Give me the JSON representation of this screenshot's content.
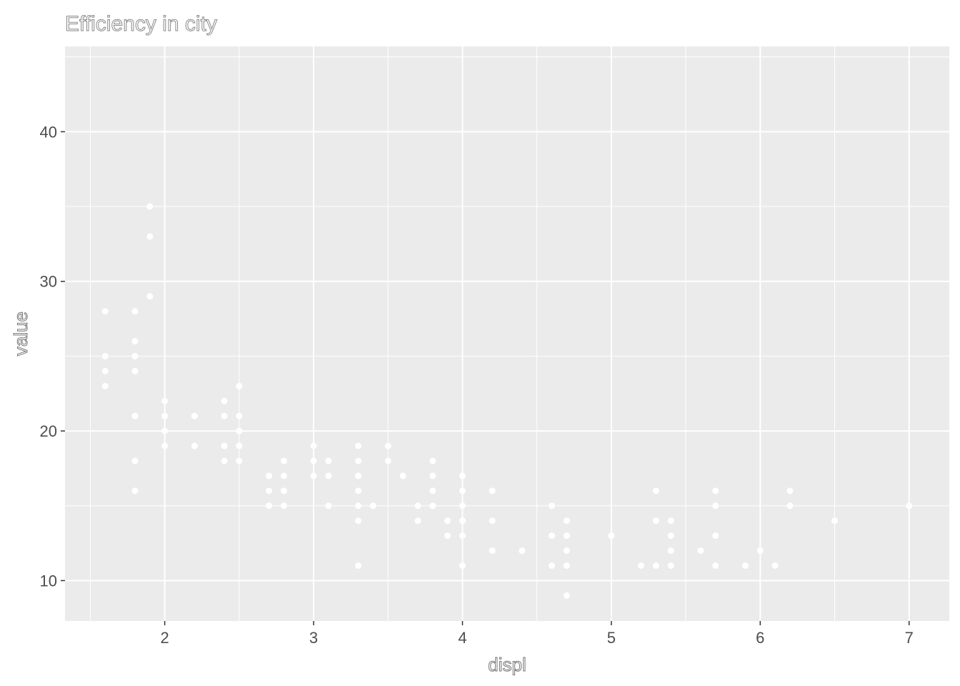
{
  "chart_data": {
    "type": "scatter",
    "title": "Efficiency in city",
    "xlabel": "displ",
    "ylabel": "value",
    "xlim": [
      1.33,
      7.27
    ],
    "ylim": [
      7.3,
      45.7
    ],
    "x_ticks": [
      2,
      3,
      4,
      5,
      6,
      7
    ],
    "y_ticks": [
      10,
      20,
      30,
      40
    ],
    "grid": true,
    "point_color": "#ffffff",
    "panel_color": "#ebebeb",
    "points": [
      [
        1.6,
        28
      ],
      [
        1.6,
        25
      ],
      [
        1.6,
        24
      ],
      [
        1.6,
        23
      ],
      [
        1.8,
        28
      ],
      [
        1.8,
        26
      ],
      [
        1.8,
        25
      ],
      [
        1.8,
        24
      ],
      [
        1.8,
        21
      ],
      [
        1.8,
        18
      ],
      [
        1.8,
        16
      ],
      [
        1.9,
        35
      ],
      [
        1.9,
        33
      ],
      [
        1.9,
        29
      ],
      [
        2.0,
        22
      ],
      [
        2.0,
        21
      ],
      [
        2.0,
        20
      ],
      [
        2.0,
        19
      ],
      [
        2.2,
        21
      ],
      [
        2.2,
        19
      ],
      [
        2.4,
        22
      ],
      [
        2.4,
        21
      ],
      [
        2.4,
        19
      ],
      [
        2.4,
        18
      ],
      [
        2.5,
        23
      ],
      [
        2.5,
        21
      ],
      [
        2.5,
        20
      ],
      [
        2.5,
        19
      ],
      [
        2.5,
        18
      ],
      [
        2.7,
        17
      ],
      [
        2.7,
        16
      ],
      [
        2.7,
        15
      ],
      [
        2.8,
        18
      ],
      [
        2.8,
        17
      ],
      [
        2.8,
        16
      ],
      [
        2.8,
        15
      ],
      [
        3.0,
        19
      ],
      [
        3.0,
        18
      ],
      [
        3.0,
        17
      ],
      [
        3.1,
        18
      ],
      [
        3.1,
        17
      ],
      [
        3.1,
        15
      ],
      [
        3.3,
        19
      ],
      [
        3.3,
        18
      ],
      [
        3.3,
        17
      ],
      [
        3.3,
        16
      ],
      [
        3.3,
        15
      ],
      [
        3.3,
        14
      ],
      [
        3.3,
        11
      ],
      [
        3.4,
        15
      ],
      [
        3.5,
        19
      ],
      [
        3.5,
        18
      ],
      [
        3.6,
        17
      ],
      [
        3.7,
        15
      ],
      [
        3.7,
        14
      ],
      [
        3.8,
        18
      ],
      [
        3.8,
        17
      ],
      [
        3.8,
        16
      ],
      [
        3.8,
        15
      ],
      [
        3.9,
        14
      ],
      [
        3.9,
        13
      ],
      [
        4.0,
        17
      ],
      [
        4.0,
        16
      ],
      [
        4.0,
        15
      ],
      [
        4.0,
        14
      ],
      [
        4.0,
        13
      ],
      [
        4.0,
        11
      ],
      [
        4.2,
        16
      ],
      [
        4.2,
        14
      ],
      [
        4.2,
        12
      ],
      [
        4.4,
        12
      ],
      [
        4.6,
        15
      ],
      [
        4.6,
        13
      ],
      [
        4.6,
        11
      ],
      [
        4.7,
        14
      ],
      [
        4.7,
        13
      ],
      [
        4.7,
        12
      ],
      [
        4.7,
        11
      ],
      [
        4.7,
        9
      ],
      [
        5.0,
        13
      ],
      [
        5.2,
        11
      ],
      [
        5.3,
        16
      ],
      [
        5.3,
        14
      ],
      [
        5.3,
        11
      ],
      [
        5.4,
        14
      ],
      [
        5.4,
        13
      ],
      [
        5.4,
        12
      ],
      [
        5.4,
        11
      ],
      [
        5.6,
        12
      ],
      [
        5.7,
        16
      ],
      [
        5.7,
        15
      ],
      [
        5.7,
        13
      ],
      [
        5.7,
        11
      ],
      [
        5.9,
        11
      ],
      [
        6.0,
        12
      ],
      [
        6.1,
        11
      ],
      [
        6.2,
        16
      ],
      [
        6.2,
        15
      ],
      [
        6.5,
        14
      ],
      [
        7.0,
        15
      ]
    ]
  }
}
